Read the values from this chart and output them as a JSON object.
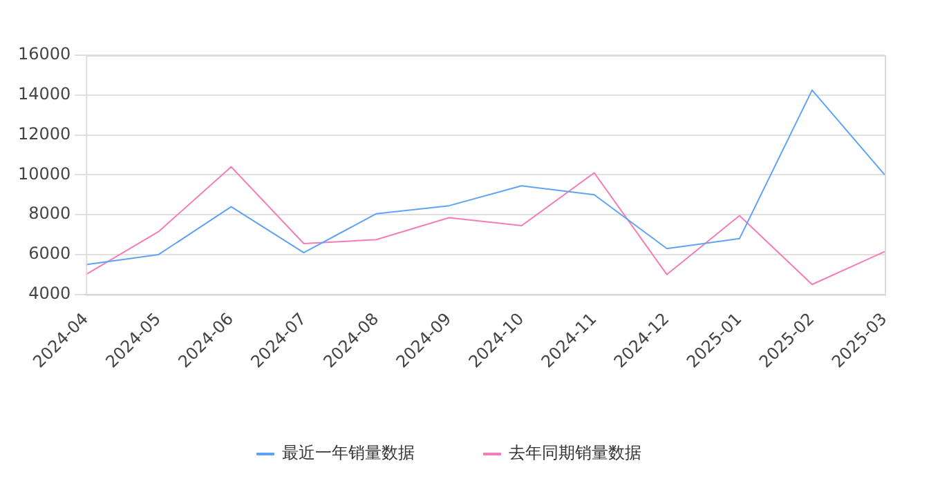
{
  "chart_data": {
    "type": "line",
    "categories": [
      "2024-04",
      "2024-05",
      "2024-06",
      "2024-07",
      "2024-08",
      "2024-09",
      "2024-10",
      "2024-11",
      "2024-12",
      "2025-01",
      "2025-02",
      "2025-03"
    ],
    "series": [
      {
        "name": "最近一年销量数据",
        "color": "#5da3f5",
        "values": [
          5500,
          6000,
          8400,
          6100,
          8050,
          8450,
          9450,
          9000,
          6300,
          6800,
          14250,
          10000
        ]
      },
      {
        "name": "去年同期销量数据",
        "color": "#f47cb8",
        "values": [
          5000,
          7150,
          10400,
          6550,
          6750,
          7850,
          7450,
          10100,
          5000,
          7950,
          4500,
          6150
        ]
      }
    ],
    "ylim": [
      4000,
      16000
    ],
    "yticks": [
      4000,
      6000,
      8000,
      10000,
      12000,
      14000,
      16000
    ],
    "grid": "y",
    "legend": "bottom",
    "marker": "none"
  }
}
